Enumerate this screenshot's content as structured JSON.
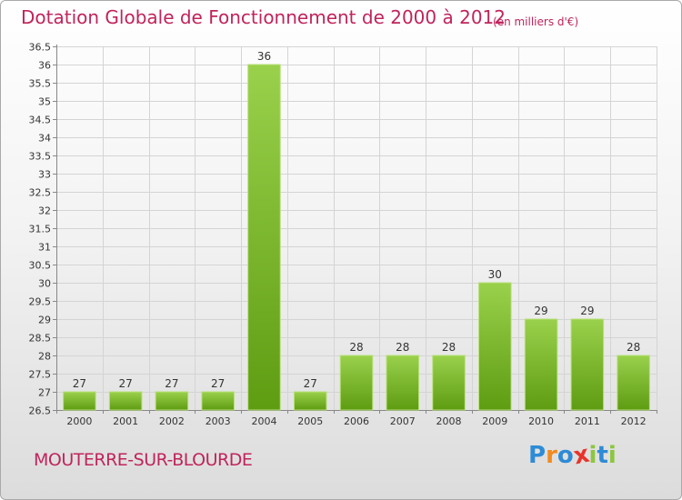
{
  "title": "Dotation Globale de Fonctionnement de 2000 à 2012",
  "subtitle": "(en milliers d'€)",
  "commune": "MOUTERRE-SUR-BLOURDE",
  "logo": {
    "text": "Proxiti",
    "letters": [
      "P",
      "r",
      "o",
      "x",
      "i",
      "t",
      "i"
    ],
    "colors": [
      "#2e8bd6",
      "#f28a1e",
      "#2e8bd6",
      "#e8352b",
      "#8cc63f",
      "#2e8bd6",
      "#8cc63f"
    ]
  },
  "colors": {
    "title": "#c0245c",
    "bar_light": "#9ad14c",
    "bar_dark": "#5e9c12"
  },
  "chart_data": {
    "type": "bar",
    "title": "Dotation Globale de Fonctionnement de 2000 à 2012",
    "subtitle": "(en milliers d'€)",
    "categories": [
      "2000",
      "2001",
      "2002",
      "2003",
      "2004",
      "2005",
      "2006",
      "2007",
      "2008",
      "2009",
      "2010",
      "2011",
      "2012"
    ],
    "values": [
      27,
      27,
      27,
      27,
      36,
      27,
      28,
      28,
      28,
      30,
      29,
      29,
      28
    ],
    "value_labels": [
      "27",
      "27",
      "27",
      "27",
      "36",
      "27",
      "28",
      "28",
      "28",
      "30",
      "29",
      "29",
      "28"
    ],
    "ylim": [
      26.5,
      36.5
    ],
    "yticks": [
      26.5,
      27,
      27.5,
      28,
      28.5,
      29,
      29.5,
      30,
      30.5,
      31,
      31.5,
      32,
      32.5,
      33,
      33.5,
      34,
      34.5,
      35,
      35.5,
      36,
      36.5
    ],
    "ytick_labels": [
      "26.5",
      "27",
      "27.5",
      "28",
      "28.5",
      "29",
      "29.5",
      "30",
      "30.5",
      "31",
      "31.5",
      "32",
      "32.5",
      "33",
      "33.5",
      "34",
      "34.5",
      "35",
      "35.5",
      "36",
      "36.5"
    ],
    "grid": true,
    "xlabel": "",
    "ylabel": ""
  }
}
